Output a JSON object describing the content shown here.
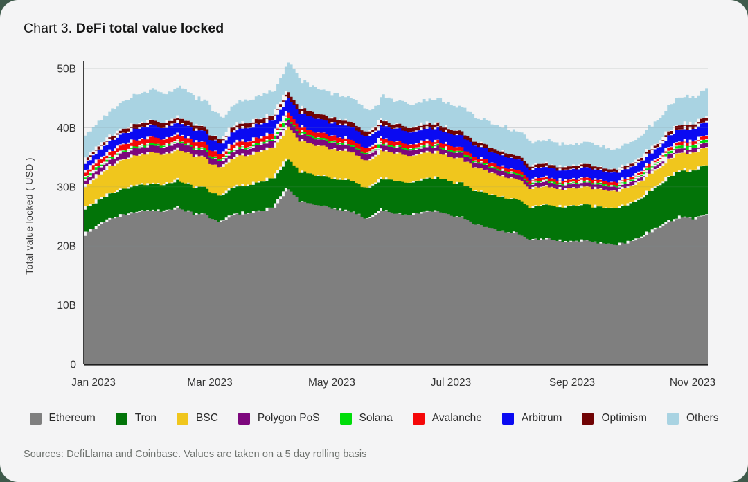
{
  "card": {
    "title_prefix": "Chart 3. ",
    "title": "DeFi total value locked",
    "source_note": "Sources: DefiLlama and Coinbase. Values are taken on a 5 day rolling basis"
  },
  "colors": {
    "page_background": "#3f5a4b",
    "card_background": "#f4f4f5",
    "axis": "#1f1f1f",
    "gridline": "#e2e2e2",
    "tick_text": "#333333",
    "axis_title_text": "#3a3a3a",
    "source_text": "#6d716d"
  },
  "chart_data": {
    "type": "area",
    "stacked": true,
    "title": "DeFi total value locked",
    "ylabel": "Total value locked ( USD )",
    "xlabel": "",
    "unit": "billions USD",
    "ylim": [
      0,
      50
    ],
    "grid": "horizontal",
    "legend_position": "bottom",
    "y_ticks": [
      "0",
      "10B",
      "20B",
      "30B",
      "40B",
      "50B"
    ],
    "x_tick_labels": [
      "Jan 2023",
      "Mar 2023",
      "May 2023",
      "Jul 2023",
      "Sep 2023",
      "Nov 2023"
    ],
    "x": [
      "2023-01-01",
      "2023-01-08",
      "2023-01-15",
      "2023-01-22",
      "2023-01-29",
      "2023-02-05",
      "2023-02-12",
      "2023-02-19",
      "2023-02-26",
      "2023-03-05",
      "2023-03-12",
      "2023-03-19",
      "2023-03-26",
      "2023-04-02",
      "2023-04-09",
      "2023-04-16",
      "2023-04-23",
      "2023-04-30",
      "2023-05-07",
      "2023-05-14",
      "2023-05-21",
      "2023-05-28",
      "2023-06-04",
      "2023-06-11",
      "2023-06-18",
      "2023-06-25",
      "2023-07-02",
      "2023-07-09",
      "2023-07-16",
      "2023-07-23",
      "2023-07-30",
      "2023-08-06",
      "2023-08-13",
      "2023-08-20",
      "2023-08-27",
      "2023-09-03",
      "2023-09-10",
      "2023-09-17",
      "2023-09-24",
      "2023-10-01",
      "2023-10-08",
      "2023-10-15",
      "2023-10-22",
      "2023-10-29",
      "2023-11-05",
      "2023-11-12",
      "2023-11-19"
    ],
    "series": [
      {
        "name": "Ethereum",
        "color": "#7f7f7f",
        "values": [
          22.0,
          23.2,
          24.6,
          25.3,
          25.8,
          26.1,
          25.9,
          26.5,
          25.6,
          25.4,
          24.0,
          25.3,
          25.7,
          26.0,
          26.5,
          30.0,
          27.6,
          27.1,
          26.7,
          26.2,
          25.7,
          24.5,
          26.1,
          25.6,
          25.1,
          25.8,
          26.0,
          25.3,
          24.8,
          23.6,
          23.1,
          22.5,
          22.1,
          21.2,
          21.3,
          21.0,
          20.7,
          21.0,
          20.6,
          20.3,
          20.6,
          21.3,
          22.7,
          24.0,
          24.9,
          24.6,
          25.6
        ]
      },
      {
        "name": "Tron",
        "color": "#027408",
        "values": [
          4.3,
          4.35,
          4.4,
          4.45,
          4.5,
          4.55,
          4.6,
          4.65,
          4.6,
          4.55,
          4.35,
          4.65,
          4.75,
          4.85,
          4.95,
          5.05,
          5.0,
          5.05,
          5.15,
          5.2,
          5.25,
          5.15,
          5.45,
          5.5,
          5.55,
          5.6,
          5.65,
          5.7,
          5.75,
          5.65,
          5.7,
          5.8,
          5.7,
          5.6,
          5.7,
          5.85,
          5.95,
          6.05,
          6.1,
          6.2,
          6.4,
          6.7,
          7.1,
          7.5,
          7.9,
          8.1,
          8.4
        ]
      },
      {
        "name": "BSC",
        "color": "#f0c61d",
        "values": [
          3.7,
          4.2,
          4.7,
          5.0,
          5.1,
          5.25,
          5.15,
          5.3,
          5.15,
          5.05,
          4.7,
          5.0,
          5.1,
          5.1,
          5.2,
          5.45,
          5.2,
          5.1,
          5.0,
          4.9,
          4.8,
          4.6,
          4.8,
          4.65,
          4.55,
          4.45,
          4.35,
          4.25,
          4.15,
          3.95,
          3.75,
          3.55,
          3.4,
          3.2,
          3.15,
          3.05,
          3.0,
          3.05,
          3.0,
          2.95,
          2.9,
          2.9,
          2.95,
          3.0,
          3.05,
          3.0,
          3.05
        ]
      },
      {
        "name": "Polygon PoS",
        "color": "#7d077d",
        "values": [
          1.1,
          1.14,
          1.18,
          1.2,
          1.22,
          1.24,
          1.21,
          1.24,
          1.19,
          1.16,
          1.04,
          1.13,
          1.14,
          1.14,
          1.15,
          1.19,
          1.11,
          1.09,
          1.07,
          1.04,
          1.01,
          0.97,
          0.99,
          0.96,
          0.94,
          0.94,
          0.92,
          0.89,
          0.87,
          0.83,
          0.81,
          0.79,
          0.77,
          0.74,
          0.75,
          0.74,
          0.73,
          0.74,
          0.72,
          0.71,
          0.7,
          0.71,
          0.73,
          0.76,
          0.79,
          0.78,
          0.8
        ]
      },
      {
        "name": "Solana",
        "color": "#00dd0a",
        "values": [
          0.29,
          0.29,
          0.3,
          0.3,
          0.3,
          0.3,
          0.29,
          0.3,
          0.29,
          0.28,
          0.26,
          0.28,
          0.29,
          0.29,
          0.29,
          0.3,
          0.29,
          0.29,
          0.29,
          0.28,
          0.28,
          0.27,
          0.28,
          0.27,
          0.27,
          0.27,
          0.27,
          0.27,
          0.26,
          0.26,
          0.25,
          0.25,
          0.25,
          0.24,
          0.25,
          0.25,
          0.26,
          0.27,
          0.27,
          0.28,
          0.31,
          0.35,
          0.4,
          0.46,
          0.52,
          0.56,
          0.6
        ]
      },
      {
        "name": "Avalanche",
        "color": "#f50708",
        "values": [
          1.0,
          1.02,
          1.05,
          1.06,
          1.06,
          1.07,
          1.04,
          1.06,
          1.02,
          0.99,
          0.9,
          0.96,
          0.96,
          0.95,
          0.94,
          0.96,
          0.9,
          0.88,
          0.86,
          0.83,
          0.81,
          0.77,
          0.78,
          0.75,
          0.73,
          0.72,
          0.71,
          0.69,
          0.67,
          0.63,
          0.61,
          0.59,
          0.57,
          0.53,
          0.53,
          0.52,
          0.51,
          0.52,
          0.51,
          0.5,
          0.5,
          0.52,
          0.55,
          0.58,
          0.61,
          0.62,
          0.65
        ]
      },
      {
        "name": "Arbitrum",
        "color": "#0a0af2",
        "values": [
          1.5,
          1.65,
          1.8,
          1.9,
          1.95,
          2.0,
          1.95,
          2.05,
          1.95,
          1.9,
          1.75,
          2.05,
          2.25,
          2.3,
          2.35,
          2.5,
          2.35,
          2.3,
          2.25,
          2.2,
          2.15,
          2.05,
          2.2,
          2.15,
          2.1,
          2.15,
          2.2,
          2.1,
          2.05,
          1.95,
          1.9,
          1.85,
          1.8,
          1.7,
          1.72,
          1.7,
          1.68,
          1.72,
          1.68,
          1.65,
          1.68,
          1.75,
          1.88,
          2.02,
          2.15,
          2.2,
          2.35
        ]
      },
      {
        "name": "Optimism",
        "color": "#700304",
        "values": [
          0.52,
          0.6,
          0.68,
          0.73,
          0.77,
          0.82,
          0.8,
          0.84,
          0.8,
          0.77,
          0.7,
          0.8,
          0.84,
          0.86,
          0.88,
          0.95,
          0.87,
          0.85,
          0.83,
          0.8,
          0.78,
          0.74,
          0.78,
          0.76,
          0.74,
          0.75,
          0.76,
          0.73,
          0.71,
          0.66,
          0.64,
          0.62,
          0.6,
          0.57,
          0.57,
          0.55,
          0.54,
          0.56,
          0.54,
          0.53,
          0.53,
          0.55,
          0.6,
          0.66,
          0.72,
          0.75,
          0.78
        ]
      },
      {
        "name": "Others",
        "color": "#a9d3e2",
        "values": [
          4.19,
          4.35,
          4.49,
          4.86,
          4.9,
          5.07,
          4.96,
          5.06,
          4.6,
          4.2,
          3.7,
          3.73,
          3.87,
          4.0,
          4.14,
          4.9,
          4.28,
          4.14,
          4.05,
          3.95,
          3.82,
          3.55,
          3.92,
          3.96,
          3.92,
          4.02,
          4.04,
          3.97,
          4.04,
          3.97,
          3.94,
          4.05,
          4.01,
          3.82,
          3.93,
          3.74,
          3.63,
          3.69,
          3.48,
          3.38,
          3.68,
          3.82,
          4.09,
          4.52,
          4.76,
          4.39,
          4.97
        ]
      }
    ]
  }
}
